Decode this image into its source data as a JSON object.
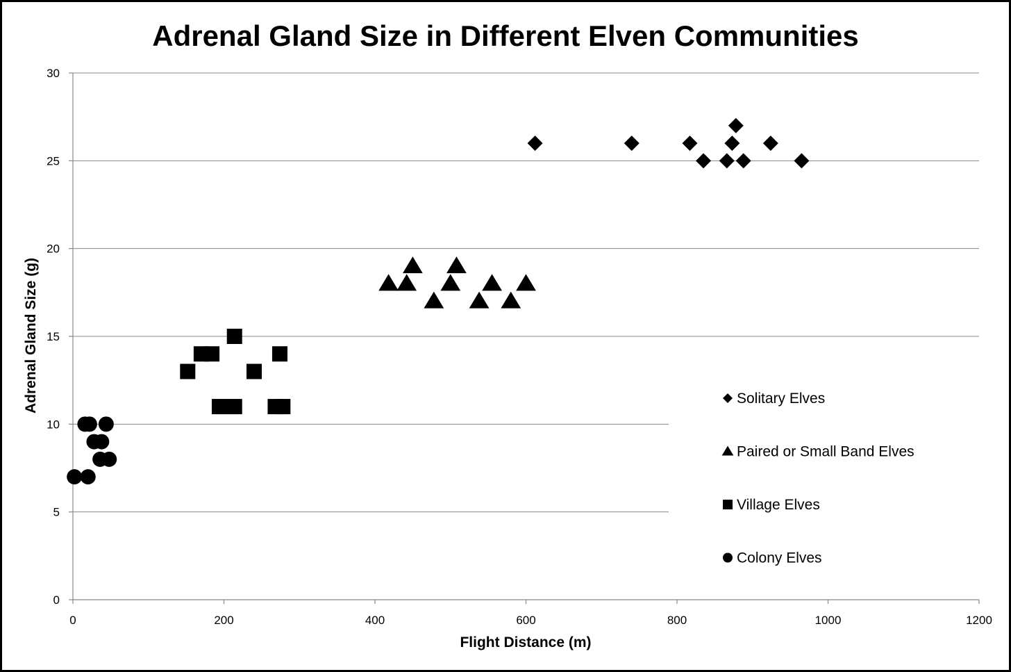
{
  "chart_data": {
    "type": "scatter",
    "title": "Adrenal Gland Size in Different Elven Communities",
    "xlabel": "Flight Distance (m)",
    "ylabel": "Adrenal Gland Size (g)",
    "xlim": [
      0,
      1200
    ],
    "ylim": [
      0,
      30
    ],
    "x_ticks": [
      0,
      200,
      400,
      600,
      800,
      1000,
      1200
    ],
    "y_ticks": [
      0,
      5,
      10,
      15,
      20,
      25,
      30
    ],
    "grid": "horizontal",
    "legend_position": "right",
    "marker_color": "#000000",
    "series": [
      {
        "name": "Solitary Elves",
        "marker": "diamond",
        "points": [
          [
            612,
            26
          ],
          [
            740,
            26
          ],
          [
            817,
            26
          ],
          [
            835,
            25
          ],
          [
            866,
            25
          ],
          [
            873,
            26
          ],
          [
            878,
            27
          ],
          [
            888,
            25
          ],
          [
            924,
            26
          ],
          [
            965,
            25
          ]
        ]
      },
      {
        "name": "Paired or Small Band Elves",
        "marker": "triangle",
        "points": [
          [
            418,
            18
          ],
          [
            442,
            18
          ],
          [
            450,
            19
          ],
          [
            478,
            17
          ],
          [
            500,
            18
          ],
          [
            508,
            19
          ],
          [
            538,
            17
          ],
          [
            555,
            18
          ],
          [
            580,
            17
          ],
          [
            600,
            18
          ]
        ]
      },
      {
        "name": "Village Elves",
        "marker": "square",
        "points": [
          [
            152,
            13
          ],
          [
            170,
            14
          ],
          [
            184,
            14
          ],
          [
            194,
            11
          ],
          [
            214,
            15
          ],
          [
            214,
            11
          ],
          [
            240,
            13
          ],
          [
            268,
            11
          ],
          [
            274,
            14
          ],
          [
            278,
            11
          ]
        ]
      },
      {
        "name": "Colony Elves",
        "marker": "circle",
        "points": [
          [
            2,
            7
          ],
          [
            16,
            10
          ],
          [
            20,
            7
          ],
          [
            22,
            10
          ],
          [
            28,
            9
          ],
          [
            38,
            9
          ],
          [
            36,
            8
          ],
          [
            44,
            10
          ],
          [
            48,
            8
          ]
        ]
      }
    ]
  }
}
